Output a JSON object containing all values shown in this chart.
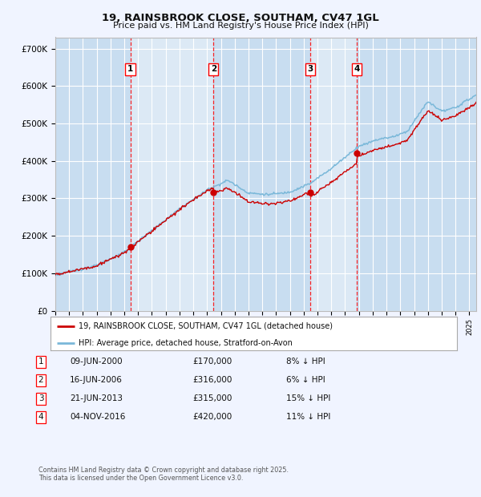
{
  "title": "19, RAINSBROOK CLOSE, SOUTHAM, CV47 1GL",
  "subtitle": "Price paid vs. HM Land Registry's House Price Index (HPI)",
  "yticks": [
    0,
    100000,
    200000,
    300000,
    400000,
    500000,
    600000,
    700000
  ],
  "ytick_labels": [
    "£0",
    "£100K",
    "£200K",
    "£300K",
    "£400K",
    "£500K",
    "£600K",
    "£700K"
  ],
  "background_color": "#f0f4ff",
  "plot_bg_color": "#dce9f5",
  "band_color": "#c8ddf0",
  "grid_color": "#ffffff",
  "line_color_hpi": "#7ab8d9",
  "line_color_price": "#cc0000",
  "sale_dates": [
    2000.44,
    2006.46,
    2013.47,
    2016.84
  ],
  "sale_prices": [
    170000,
    316000,
    315000,
    420000
  ],
  "sale_labels": [
    "1",
    "2",
    "3",
    "4"
  ],
  "legend_price_label": "19, RAINSBROOK CLOSE, SOUTHAM, CV47 1GL (detached house)",
  "legend_hpi_label": "HPI: Average price, detached house, Stratford-on-Avon",
  "table_rows": [
    [
      "1",
      "09-JUN-2000",
      "£170,000",
      "8% ↓ HPI"
    ],
    [
      "2",
      "16-JUN-2006",
      "£316,000",
      "6% ↓ HPI"
    ],
    [
      "3",
      "21-JUN-2013",
      "£315,000",
      "15% ↓ HPI"
    ],
    [
      "4",
      "04-NOV-2016",
      "£420,000",
      "11% ↓ HPI"
    ]
  ],
  "footer": "Contains HM Land Registry data © Crown copyright and database right 2025.\nThis data is licensed under the Open Government Licence v3.0.",
  "xmin": 1995,
  "xmax": 2025.5,
  "ymin": 0,
  "ymax": 730000
}
